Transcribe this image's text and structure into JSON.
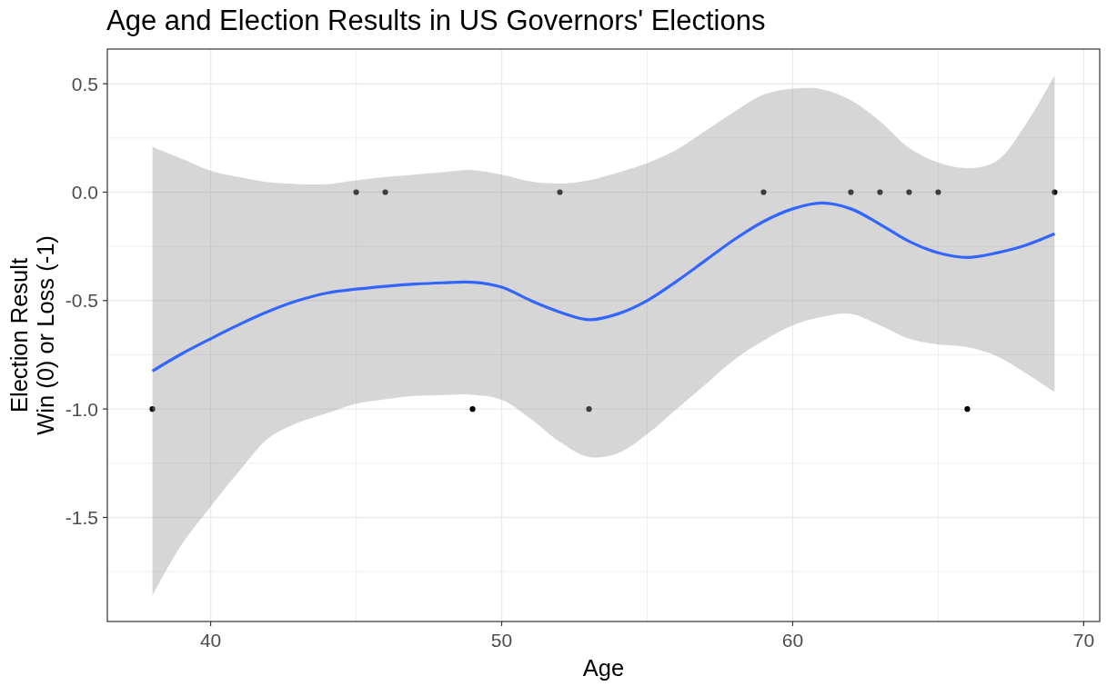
{
  "chart_data": {
    "type": "scatter",
    "title": "Age and Election Results in US Governors' Elections",
    "xlabel": "Age",
    "ylabel": "Election Result\nWin (0) or Loss (-1)",
    "xlim": [
      36.45,
      70.55
    ],
    "xticks": [
      40,
      {
        "value": 45,
        "label": null
      },
      50,
      {
        "value": 55,
        "label": null
      },
      60,
      {
        "value": 65,
        "label": null
      },
      70
    ],
    "ylim": [
      -1.98,
      0.66
    ],
    "yticks": [
      {
        "value": -1.75,
        "label": null
      },
      -1.5,
      {
        "value": -1.25,
        "label": null
      },
      {
        "value": -1,
        "label": "-1.0"
      },
      {
        "value": -0.75,
        "label": null
      },
      -0.5,
      {
        "value": -0.25,
        "label": null
      },
      {
        "value": 0,
        "label": "0.0"
      },
      {
        "value": 0.25,
        "label": null
      },
      0.5
    ],
    "grid": true,
    "series": [
      {
        "type": "scatter",
        "marker": "circle",
        "color": "#000000",
        "x": [
          38,
          45,
          46,
          49,
          52,
          53,
          59,
          62,
          63,
          64,
          65,
          66,
          69
        ],
        "values": [
          -1,
          0,
          0,
          -1,
          0,
          -1,
          0,
          0,
          0,
          0,
          0,
          -1,
          0
        ]
      },
      {
        "type": "line",
        "marker": "none",
        "line_style": "solid",
        "color": "#3366ff",
        "x": [
          38,
          39,
          40,
          41,
          42,
          43,
          44,
          45,
          46,
          47,
          48,
          49,
          50,
          51,
          52,
          53,
          54,
          55,
          56,
          57,
          58,
          59,
          60,
          61,
          62,
          63,
          64,
          65,
          66,
          67,
          68,
          69
        ],
        "values": [
          -0.825,
          -0.746,
          -0.676,
          -0.609,
          -0.549,
          -0.5,
          -0.465,
          -0.447,
          -0.434,
          -0.424,
          -0.418,
          -0.415,
          -0.438,
          -0.5,
          -0.553,
          -0.588,
          -0.561,
          -0.5,
          -0.412,
          -0.315,
          -0.218,
          -0.135,
          -0.077,
          -0.05,
          -0.077,
          -0.148,
          -0.227,
          -0.28,
          -0.301,
          -0.28,
          -0.245,
          -0.192
        ],
        "lower": [
          -1.86,
          -1.626,
          -1.45,
          -1.283,
          -1.133,
          -1.063,
          -1.019,
          -0.975,
          -0.955,
          -0.94,
          -0.935,
          -0.934,
          -0.957,
          -1.045,
          -1.151,
          -1.221,
          -1.204,
          -1.116,
          -1.001,
          -0.887,
          -0.772,
          -0.685,
          -0.614,
          -0.575,
          -0.561,
          -0.614,
          -0.676,
          -0.702,
          -0.714,
          -0.755,
          -0.834,
          -0.922
        ],
        "upper": [
          0.209,
          0.155,
          0.099,
          0.069,
          0.046,
          0.037,
          0.037,
          0.055,
          0.07,
          0.081,
          0.092,
          0.102,
          0.081,
          0.049,
          0.04,
          0.055,
          0.09,
          0.134,
          0.195,
          0.283,
          0.371,
          0.45,
          0.477,
          0.475,
          0.424,
          0.327,
          0.204,
          0.137,
          0.111,
          0.143,
          0.31,
          0.538
        ]
      }
    ]
  }
}
